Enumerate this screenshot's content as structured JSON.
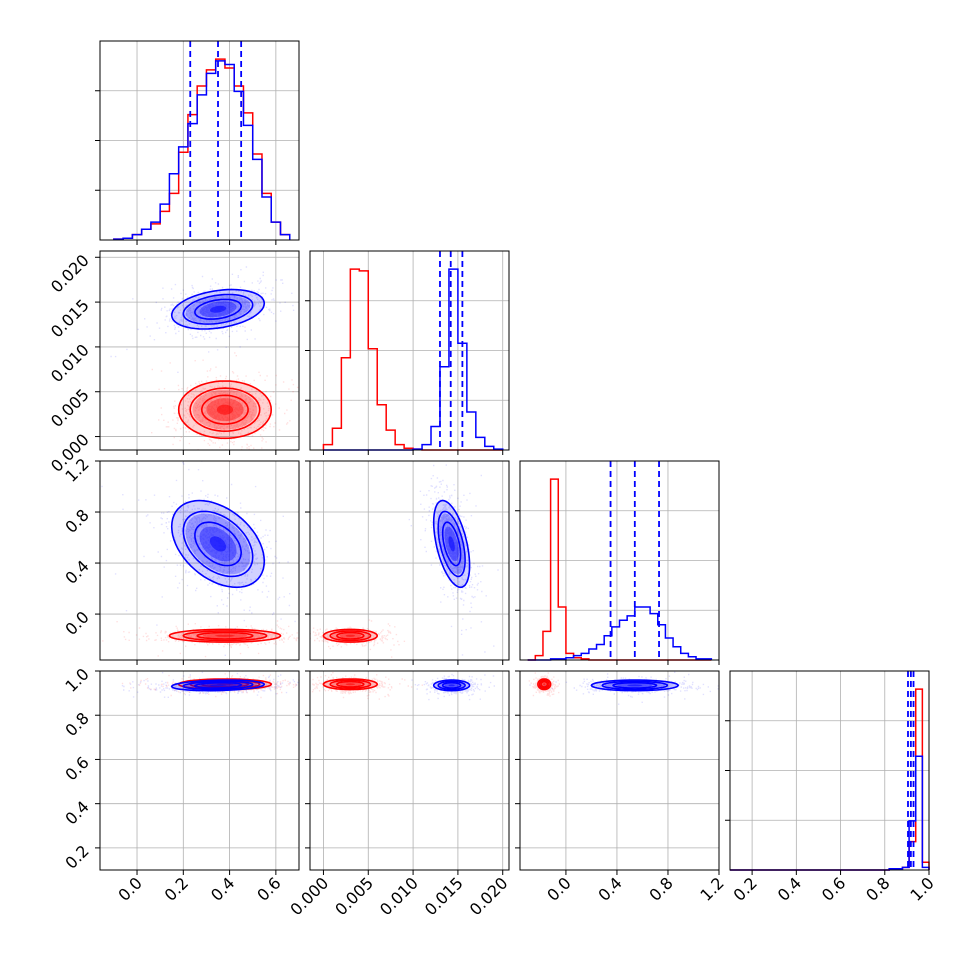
{
  "chart_data": {
    "type": "corner",
    "parameters": 4,
    "grid": true,
    "series_colors": {
      "red": "#ff0000",
      "blue": "#0000ff"
    },
    "axes": {
      "p1": {
        "range": [
          -0.16,
          0.7
        ],
        "ticks": [
          "0.0",
          "0.2",
          "0.4",
          "0.6"
        ]
      },
      "p2": {
        "range": [
          -0.0015,
          0.0207
        ],
        "ticks": [
          "0.000",
          "0.005",
          "0.010",
          "0.015",
          "0.020"
        ]
      },
      "p3": {
        "range": [
          -0.36,
          1.2
        ],
        "ticks": [
          "0.0",
          "0.4",
          "0.8",
          "1.2"
        ]
      },
      "p4": {
        "range": [
          0.1,
          1.0
        ],
        "ticks": [
          "0.2",
          "0.4",
          "0.6",
          "0.8",
          "1.0"
        ]
      }
    },
    "diagonal_ticks": {
      "p1": {
        "values": [
          0.0,
          0.2,
          0.4,
          0.6
        ],
        "labels": [
          "0.0",
          "0.2",
          "0.4",
          "0.6"
        ]
      },
      "p2": {
        "values": [
          0.0,
          0.005,
          0.01,
          0.015,
          0.02
        ],
        "labels": [
          "0.000",
          "0.005",
          "0.010",
          "0.015",
          "0.020"
        ]
      },
      "p3": {
        "values": [
          0.0,
          0.4,
          0.8,
          1.2
        ],
        "labels": [
          "0.0",
          "0.4",
          "0.8",
          "1.2"
        ]
      },
      "p4": {
        "values": [
          0.2,
          0.4,
          0.6,
          0.8,
          1.0
        ],
        "labels": [
          "0.2",
          "0.4",
          "0.6",
          "0.8",
          "1.0"
        ]
      }
    },
    "row_ticks": {
      "p2": {
        "values": [
          0.0,
          0.005,
          0.01,
          0.015,
          0.02
        ],
        "labels": [
          "0.000",
          "0.005",
          "0.010",
          "0.015",
          "0.020"
        ]
      },
      "p3": {
        "values": [
          0.0,
          0.4,
          0.8,
          1.2
        ],
        "labels": [
          "0.0",
          "0.4",
          "0.8",
          "1.2"
        ]
      },
      "p4": {
        "values": [
          0.2,
          0.4,
          0.6,
          0.8,
          1.0
        ],
        "labels": [
          "0.2",
          "0.4",
          "0.6",
          "0.8",
          "1.0"
        ]
      }
    },
    "quantile_lines": {
      "color": "blue",
      "p1": [
        0.23,
        0.35,
        0.45
      ],
      "p2": [
        0.013,
        0.0142,
        0.0155
      ],
      "p3": [
        0.35,
        0.54,
        0.73
      ],
      "p4": [
        0.905,
        0.918,
        0.93
      ]
    },
    "histograms": {
      "p1": {
        "bin_edges": [
          -0.1,
          -0.06,
          -0.02,
          0.02,
          0.06,
          0.1,
          0.14,
          0.18,
          0.22,
          0.26,
          0.3,
          0.34,
          0.38,
          0.42,
          0.46,
          0.5,
          0.54,
          0.58,
          0.62,
          0.66
        ],
        "blue": [
          0.5,
          1,
          3,
          6,
          10,
          20,
          37,
          52,
          65,
          81,
          93,
          100,
          98,
          83,
          64,
          45,
          24,
          10,
          3
        ],
        "red": [
          0.5,
          1,
          3,
          6,
          9,
          16,
          26,
          49,
          70,
          86,
          95,
          101,
          96,
          86,
          71,
          48,
          26,
          10,
          3
        ]
      },
      "p2": {
        "bin_edges": [
          0.0,
          0.001,
          0.002,
          0.003,
          0.004,
          0.005,
          0.006,
          0.007,
          0.008,
          0.009,
          0.01,
          0.011,
          0.012,
          0.013,
          0.014,
          0.015,
          0.016,
          0.017,
          0.018,
          0.019,
          0.02
        ],
        "red": [
          3,
          12,
          51,
          100,
          99,
          56,
          25,
          11,
          3,
          1,
          0.5,
          0,
          0,
          0,
          0,
          0,
          0,
          0,
          0,
          0
        ],
        "blue": [
          0,
          0,
          0,
          0,
          0,
          0,
          0,
          0,
          0,
          0,
          0.5,
          3,
          13,
          46,
          100,
          59,
          21,
          7,
          2,
          0.5
        ]
      },
      "p3": {
        "bin_edges": [
          -0.3,
          -0.24,
          -0.18,
          -0.12,
          -0.06,
          0.0,
          0.06,
          0.12,
          0.18,
          0.24,
          0.3,
          0.36,
          0.42,
          0.48,
          0.54,
          0.6,
          0.66,
          0.72,
          0.78,
          0.84,
          0.9,
          0.96,
          1.02,
          1.08,
          1.14
        ],
        "red": [
          0,
          2,
          13,
          82,
          24,
          3,
          1,
          0.5,
          0,
          0,
          0,
          0,
          0,
          0,
          0,
          0,
          0,
          0,
          0,
          0,
          0,
          0,
          0,
          0
        ],
        "blue": [
          0,
          0,
          0,
          0.5,
          0.5,
          1,
          2,
          3,
          5,
          7,
          11,
          15,
          18,
          20,
          24,
          24,
          21,
          16,
          10,
          6,
          3,
          1.5,
          0.5,
          0.5
        ]
      },
      "p4": {
        "bin_edges": [
          0.1,
          0.13,
          0.16,
          0.19,
          0.22,
          0.25,
          0.28,
          0.31,
          0.34,
          0.37,
          0.4,
          0.43,
          0.46,
          0.49,
          0.52,
          0.55,
          0.58,
          0.61,
          0.64,
          0.67,
          0.7,
          0.73,
          0.76,
          0.79,
          0.82,
          0.85,
          0.88,
          0.91,
          0.94,
          0.97,
          1.0
        ],
        "red": [
          0,
          0,
          0,
          0,
          0,
          0,
          0,
          0,
          0,
          0,
          0,
          0,
          0,
          0,
          0,
          0,
          0,
          0,
          0,
          0,
          0,
          0,
          0,
          0,
          0.5,
          0.5,
          1,
          11,
          70,
          3
        ],
        "blue": [
          0,
          0,
          0,
          0,
          0,
          0,
          0,
          0,
          0,
          0,
          0,
          0,
          0,
          0,
          0,
          0,
          0,
          0,
          0,
          0,
          0,
          0,
          0,
          0,
          0.5,
          0.5,
          1,
          19,
          44,
          1
        ]
      }
    },
    "joint_distributions": {
      "red": [
        {
          "x": "p1",
          "y": "p2",
          "center": [
            0.38,
            0.003
          ],
          "sd": [
            0.1,
            0.0016
          ],
          "corr": 0.0
        },
        {
          "x": "p1",
          "y": "p3",
          "center": [
            0.38,
            -0.17
          ],
          "sd": [
            0.12,
            0.025
          ],
          "corr": 0.0
        },
        {
          "x": "p2",
          "y": "p3",
          "center": [
            0.003,
            -0.17
          ],
          "sd": [
            0.0015,
            0.025
          ],
          "corr": 0.0
        },
        {
          "x": "p1",
          "y": "p4",
          "center": [
            0.38,
            0.94
          ],
          "sd": [
            0.1,
            0.012
          ],
          "corr": 0.0
        },
        {
          "x": "p2",
          "y": "p4",
          "center": [
            0.003,
            0.94
          ],
          "sd": [
            0.0015,
            0.012
          ],
          "corr": 0.0
        },
        {
          "x": "p3",
          "y": "p4",
          "center": [
            -0.17,
            0.94
          ],
          "sd": [
            0.025,
            0.012
          ],
          "corr": 0.0
        }
      ],
      "blue": [
        {
          "x": "p1",
          "y": "p2",
          "center": [
            0.35,
            0.0142
          ],
          "sd": [
            0.1,
            0.0011
          ],
          "corr": 0.3
        },
        {
          "x": "p1",
          "y": "p3",
          "center": [
            0.35,
            0.55
          ],
          "sd": [
            0.1,
            0.17
          ],
          "corr": -0.4
        },
        {
          "x": "p2",
          "y": "p3",
          "center": [
            0.0143,
            0.55
          ],
          "sd": [
            0.001,
            0.17
          ],
          "corr": -0.5
        },
        {
          "x": "p1",
          "y": "p4",
          "center": [
            0.35,
            0.935
          ],
          "sd": [
            0.1,
            0.012
          ],
          "corr": 0.2
        },
        {
          "x": "p2",
          "y": "p4",
          "center": [
            0.0143,
            0.935
          ],
          "sd": [
            0.001,
            0.012
          ],
          "corr": 0.0
        },
        {
          "x": "p3",
          "y": "p4",
          "center": [
            0.54,
            0.935
          ],
          "sd": [
            0.17,
            0.012
          ],
          "corr": 0.0
        }
      ]
    }
  }
}
